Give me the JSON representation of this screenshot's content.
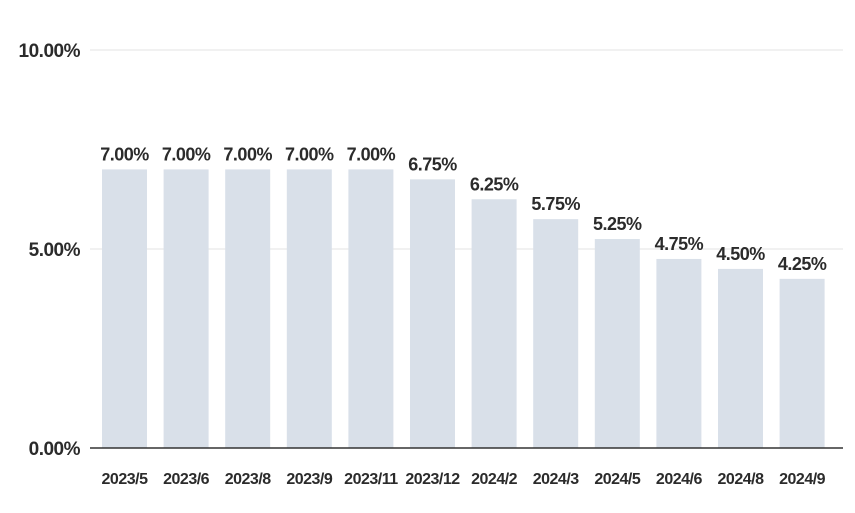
{
  "chart_data": {
    "type": "bar",
    "categories": [
      "2023/5",
      "2023/6",
      "2023/8",
      "2023/9",
      "2023/11",
      "2023/12",
      "2024/2",
      "2024/3",
      "2024/5",
      "2024/6",
      "2024/8",
      "2024/9"
    ],
    "values": [
      7.0,
      7.0,
      7.0,
      7.0,
      7.0,
      6.75,
      6.25,
      5.75,
      5.25,
      4.75,
      4.5,
      4.25
    ],
    "data_labels": [
      "7.00%",
      "7.00%",
      "7.00%",
      "7.00%",
      "7.00%",
      "6.75%",
      "6.25%",
      "5.75%",
      "5.25%",
      "4.75%",
      "4.50%",
      "4.25%"
    ],
    "y_ticks": [
      0,
      5,
      10
    ],
    "y_tick_labels": [
      "0.00%",
      "5.00%",
      "10.00%"
    ],
    "ylim": [
      0,
      10
    ],
    "grid": true,
    "legend": "none",
    "bar_color": "#d9e0e9"
  }
}
